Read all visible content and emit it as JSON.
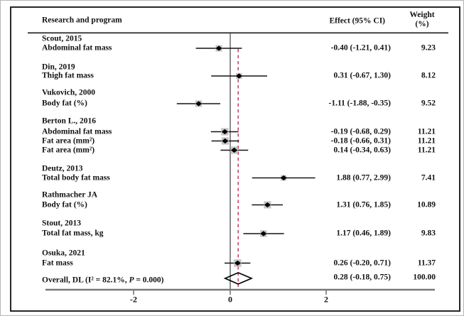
{
  "header": {
    "study": "Research and program",
    "effect": "Effect (95% CI)",
    "weight_line1": "Weight",
    "weight_line2": "(%)"
  },
  "chart_data": {
    "type": "forest",
    "title": "",
    "xlabel": "",
    "axis": {
      "tick_labels": [
        "-2",
        "0",
        "2"
      ],
      "tick_values": [
        -2,
        0,
        2
      ],
      "zero_reference_line": 0,
      "overall_dashed_line_at": 0.28
    },
    "groups": [
      {
        "study": "Scout, 2015",
        "rows": [
          {
            "label": "Abdominal fat mass",
            "effect": -0.4,
            "ci_low": -1.21,
            "ci_high": 0.41,
            "effect_text": "-0.40 (-1.21, 0.41)",
            "weight": 9.23,
            "weight_text": "9.23"
          }
        ]
      },
      {
        "study": "Din, 2019",
        "rows": [
          {
            "label": "Thigh fat mass",
            "effect": 0.31,
            "ci_low": -0.67,
            "ci_high": 1.3,
            "effect_text": "0.31 (-0.67, 1.30)",
            "weight": 8.12,
            "weight_text": "8.12"
          }
        ]
      },
      {
        "study": "Vukovich, 2000",
        "rows": [
          {
            "label": "Body fat (%)",
            "effect": -1.11,
            "ci_low": -1.88,
            "ci_high": -0.35,
            "effect_text": "-1.11 (-1.88, -0.35)",
            "weight": 9.52,
            "weight_text": "9.52"
          }
        ]
      },
      {
        "study": "Berton L., 2016",
        "rows": [
          {
            "label": "Abdominal fat mass",
            "effect": -0.19,
            "ci_low": -0.68,
            "ci_high": 0.29,
            "effect_text": "-0.19 (-0.68, 0.29)",
            "weight": 11.21,
            "weight_text": "11.21"
          },
          {
            "label": "Fat area (mm²)",
            "effect": -0.18,
            "ci_low": -0.66,
            "ci_high": 0.31,
            "effect_text": "-0.18 (-0.66, 0.31)",
            "weight": 11.21,
            "weight_text": "11.21"
          },
          {
            "label": "Fat area (mm²)",
            "effect": 0.14,
            "ci_low": -0.34,
            "ci_high": 0.63,
            "effect_text": "0.14 (-0.34, 0.63)",
            "weight": 11.21,
            "weight_text": "11.21"
          }
        ]
      },
      {
        "study": "Deutz, 2013",
        "rows": [
          {
            "label": "Total body fat mass",
            "effect": 1.88,
            "ci_low": 0.77,
            "ci_high": 2.99,
            "effect_text": "1.88 (0.77, 2.99)",
            "weight": 7.41,
            "weight_text": "7.41"
          }
        ]
      },
      {
        "study": "Rathmacher JA",
        "rows": [
          {
            "label": "Body fat (%)",
            "effect": 1.31,
            "ci_low": 0.76,
            "ci_high": 1.85,
            "effect_text": "1.31 (0.76, 1.85)",
            "weight": 10.89,
            "weight_text": "10.89"
          }
        ]
      },
      {
        "study": "Stout, 2013",
        "rows": [
          {
            "label": "Total fat mass, kg",
            "effect": 1.17,
            "ci_low": 0.46,
            "ci_high": 1.89,
            "effect_text": "1.17 (0.46, 1.89)",
            "weight": 9.83,
            "weight_text": "9.83"
          }
        ]
      },
      {
        "study": "Osuka, 2021",
        "rows": [
          {
            "label": "Fat mass",
            "effect": 0.26,
            "ci_low": -0.2,
            "ci_high": 0.71,
            "effect_text": "0.26 (-0.20, 0.71)",
            "weight": 11.37,
            "weight_text": "11.37"
          }
        ]
      }
    ],
    "overall": {
      "label": "Overall, DL (I² = 82.1%, P = 0.000)",
      "effect": 0.28,
      "ci_low": -0.18,
      "ci_high": 0.75,
      "effect_text": "0.28 (-0.18, 0.75)",
      "weight_text": "100.00",
      "heterogeneity_i2": "82.1%",
      "heterogeneity_p": "0.000"
    },
    "colors": {
      "text": "#121212",
      "ci_line": "#141414",
      "marker": "#000000",
      "weight_box": "#c4c4c4",
      "zero_line": "#6f6f6f",
      "axis_line": "#787878",
      "header_rule": "#1c1c1c",
      "dashed_line": "#c13b5b",
      "diamond_stroke": "#000000"
    }
  }
}
